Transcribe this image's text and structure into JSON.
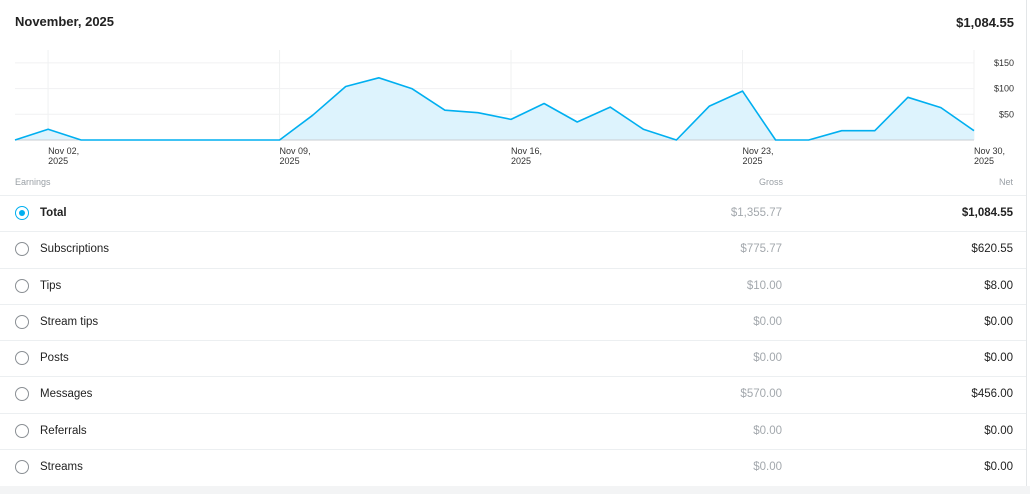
{
  "header": {
    "month": "November, 2025",
    "total": "$1,084.55"
  },
  "chart_data": {
    "type": "area",
    "color": "#00aff0",
    "fill": "#ddf3fd",
    "x_ticks": [
      {
        "label_line1": "Nov 02,",
        "label_line2": "2025",
        "day": 2
      },
      {
        "label_line1": "Nov 09,",
        "label_line2": "2025",
        "day": 9
      },
      {
        "label_line1": "Nov 16,",
        "label_line2": "2025",
        "day": 16
      },
      {
        "label_line1": "Nov 23,",
        "label_line2": "2025",
        "day": 23
      },
      {
        "label_line1": "Nov 30,",
        "label_line2": "2025",
        "day": 30
      }
    ],
    "y_ticks": [
      "$150",
      "$100",
      "$50"
    ],
    "y_tick_values": [
      150,
      100,
      50
    ],
    "ylim": [
      0,
      150
    ],
    "xlim": [
      1,
      30
    ],
    "points": [
      {
        "day": 1,
        "value": 0
      },
      {
        "day": 2,
        "value": 21
      },
      {
        "day": 3,
        "value": 0
      },
      {
        "day": 4,
        "value": 0
      },
      {
        "day": 5,
        "value": 0
      },
      {
        "day": 6,
        "value": 0
      },
      {
        "day": 7,
        "value": 0
      },
      {
        "day": 8,
        "value": 0
      },
      {
        "day": 9,
        "value": 0
      },
      {
        "day": 10,
        "value": 48
      },
      {
        "day": 11,
        "value": 104
      },
      {
        "day": 12,
        "value": 121
      },
      {
        "day": 13,
        "value": 100
      },
      {
        "day": 14,
        "value": 58
      },
      {
        "day": 15,
        "value": 53
      },
      {
        "day": 16,
        "value": 40
      },
      {
        "day": 17,
        "value": 71
      },
      {
        "day": 18,
        "value": 35
      },
      {
        "day": 19,
        "value": 64
      },
      {
        "day": 20,
        "value": 21
      },
      {
        "day": 21,
        "value": 0
      },
      {
        "day": 22,
        "value": 66
      },
      {
        "day": 23,
        "value": 95
      },
      {
        "day": 24,
        "value": 0
      },
      {
        "day": 25,
        "value": 0
      },
      {
        "day": 26,
        "value": 18
      },
      {
        "day": 27,
        "value": 18
      },
      {
        "day": 28,
        "value": 83
      },
      {
        "day": 29,
        "value": 63
      },
      {
        "day": 30,
        "value": 18
      }
    ]
  },
  "table": {
    "col_earnings": "Earnings",
    "col_gross": "Gross",
    "col_net": "Net",
    "rows": [
      {
        "label": "Total",
        "gross": "$1,355.77",
        "net": "$1,084.55",
        "selected": true
      },
      {
        "label": "Subscriptions",
        "gross": "$775.77",
        "net": "$620.55",
        "selected": false
      },
      {
        "label": "Tips",
        "gross": "$10.00",
        "net": "$8.00",
        "selected": false
      },
      {
        "label": "Stream tips",
        "gross": "$0.00",
        "net": "$0.00",
        "selected": false
      },
      {
        "label": "Posts",
        "gross": "$0.00",
        "net": "$0.00",
        "selected": false
      },
      {
        "label": "Messages",
        "gross": "$570.00",
        "net": "$456.00",
        "selected": false
      },
      {
        "label": "Referrals",
        "gross": "$0.00",
        "net": "$0.00",
        "selected": false
      },
      {
        "label": "Streams",
        "gross": "$0.00",
        "net": "$0.00",
        "selected": false
      }
    ]
  }
}
